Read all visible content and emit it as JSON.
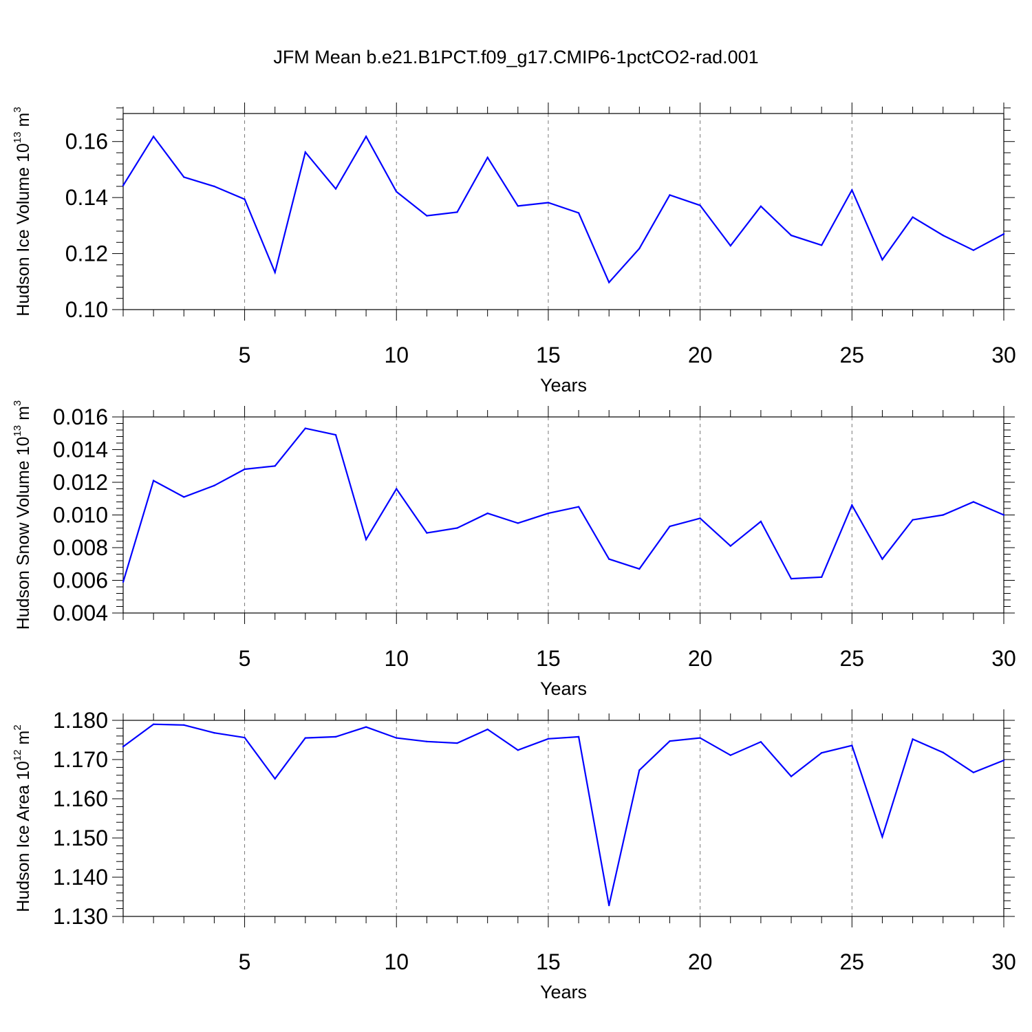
{
  "chart_data": [
    {
      "type": "line",
      "title": "JFM Mean b.e21.B1PCT.f09_g17.CMIP6-1pctCO2-rad.001",
      "xlabel": "Years",
      "ylabel": {
        "main": "Hudson Ice Volume 10",
        "exp": "13",
        "unit": " m",
        "unit_exp": "3"
      },
      "xlim": [
        1,
        30
      ],
      "ylim": [
        0.1,
        0.17
      ],
      "xticks": [
        5,
        10,
        15,
        20,
        25,
        30
      ],
      "xtick_labels": [
        "5",
        "10",
        "15",
        "20",
        "25",
        "30"
      ],
      "yticks": [
        0.1,
        0.12,
        0.14,
        0.16
      ],
      "ytick_labels": [
        "0.10",
        "0.12",
        "0.14",
        "0.16"
      ],
      "grid": "vertical dashed at major x ticks",
      "line_color": "#0000ff",
      "x": [
        1,
        2,
        3,
        4,
        5,
        6,
        7,
        8,
        9,
        10,
        11,
        12,
        13,
        14,
        15,
        16,
        17,
        18,
        19,
        20,
        21,
        22,
        23,
        24,
        25,
        26,
        27,
        28,
        29,
        30
      ],
      "values": [
        0.1443,
        0.1618,
        0.1473,
        0.144,
        0.1394,
        0.1133,
        0.1562,
        0.1431,
        0.1618,
        0.1421,
        0.1335,
        0.1348,
        0.1543,
        0.137,
        0.1382,
        0.1345,
        0.1097,
        0.1218,
        0.1409,
        0.1372,
        0.1228,
        0.1369,
        0.1265,
        0.123,
        0.1427,
        0.1178,
        0.133,
        0.1265,
        0.1212,
        0.127
      ]
    },
    {
      "type": "line",
      "xlabel": "Years",
      "ylabel": {
        "main": "Hudson Snow Volume 10",
        "exp": "13",
        "unit": " m",
        "unit_exp": "3"
      },
      "xlim": [
        1,
        30
      ],
      "ylim": [
        0.004,
        0.016
      ],
      "xticks": [
        5,
        10,
        15,
        20,
        25,
        30
      ],
      "xtick_labels": [
        "5",
        "10",
        "15",
        "20",
        "25",
        "30"
      ],
      "yticks": [
        0.004,
        0.006,
        0.008,
        0.01,
        0.012,
        0.014,
        0.016
      ],
      "ytick_labels": [
        "0.004",
        "0.006",
        "0.008",
        "0.010",
        "0.012",
        "0.014",
        "0.016"
      ],
      "grid": "vertical dashed at major x ticks",
      "line_color": "#0000ff",
      "x": [
        1,
        2,
        3,
        4,
        5,
        6,
        7,
        8,
        9,
        10,
        11,
        12,
        13,
        14,
        15,
        16,
        17,
        18,
        19,
        20,
        21,
        22,
        23,
        24,
        25,
        26,
        27,
        28,
        29,
        30
      ],
      "values": [
        0.0059,
        0.0121,
        0.0111,
        0.0118,
        0.0128,
        0.013,
        0.0153,
        0.0149,
        0.0085,
        0.0116,
        0.0089,
        0.0092,
        0.0101,
        0.0095,
        0.0101,
        0.0105,
        0.0073,
        0.0067,
        0.0093,
        0.0098,
        0.0081,
        0.0096,
        0.0061,
        0.0062,
        0.0106,
        0.0073,
        0.0097,
        0.01,
        0.0108,
        0.01
      ]
    },
    {
      "type": "line",
      "xlabel": "Years",
      "ylabel": {
        "main": "Hudson Ice Area 10",
        "exp": "12",
        "unit": " m",
        "unit_exp": "2"
      },
      "xlim": [
        1,
        30
      ],
      "ylim": [
        1.13,
        1.18
      ],
      "xticks": [
        5,
        10,
        15,
        20,
        25,
        30
      ],
      "xtick_labels": [
        "5",
        "10",
        "15",
        "20",
        "25",
        "30"
      ],
      "yticks": [
        1.13,
        1.14,
        1.15,
        1.16,
        1.17,
        1.18
      ],
      "ytick_labels": [
        "1.130",
        "1.140",
        "1.150",
        "1.160",
        "1.170",
        "1.180"
      ],
      "grid": "vertical dashed at major x ticks",
      "line_color": "#0000ff",
      "x": [
        1,
        2,
        3,
        4,
        5,
        6,
        7,
        8,
        9,
        10,
        11,
        12,
        13,
        14,
        15,
        16,
        17,
        18,
        19,
        20,
        21,
        22,
        23,
        24,
        25,
        26,
        27,
        28,
        29,
        30
      ],
      "values": [
        1.1733,
        1.179,
        1.1788,
        1.1768,
        1.1756,
        1.1651,
        1.1755,
        1.1758,
        1.1783,
        1.1755,
        1.1746,
        1.1742,
        1.1777,
        1.1724,
        1.1753,
        1.1758,
        1.1328,
        1.1673,
        1.1747,
        1.1755,
        1.1711,
        1.1745,
        1.1657,
        1.1717,
        1.1736,
        1.1503,
        1.1752,
        1.1718,
        1.1667,
        1.1698
      ]
    }
  ]
}
